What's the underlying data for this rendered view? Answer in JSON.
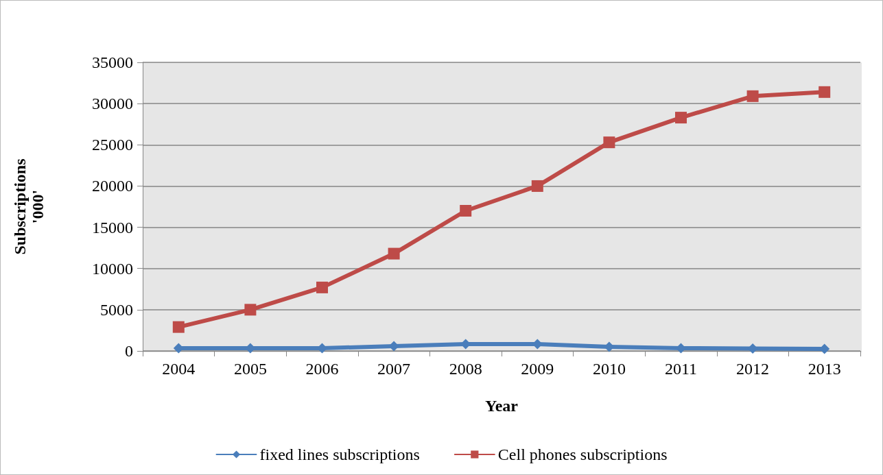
{
  "chart_data": {
    "type": "line",
    "xlabel": "Year",
    "ylabel": "Subscriptions\n'000'",
    "categories": [
      "2004",
      "2005",
      "2006",
      "2007",
      "2008",
      "2009",
      "2010",
      "2011",
      "2012",
      "2013"
    ],
    "series": [
      {
        "name": "fixed lines subscriptions",
        "color": "#4a7ebb",
        "marker": "diamond",
        "values": [
          330,
          330,
          330,
          580,
          830,
          830,
          500,
          330,
          300,
          250
        ]
      },
      {
        "name": "Cell phones subscriptions",
        "color": "#be4b48",
        "marker": "square",
        "values": [
          2900,
          5000,
          7700,
          11800,
          17000,
          20000,
          25300,
          28300,
          30900,
          31400
        ]
      }
    ],
    "ylim": [
      0,
      35000
    ],
    "yticks": [
      0,
      5000,
      10000,
      15000,
      20000,
      25000,
      30000,
      35000
    ],
    "grid": "y",
    "legend": "bottom",
    "line_style": "solid"
  }
}
